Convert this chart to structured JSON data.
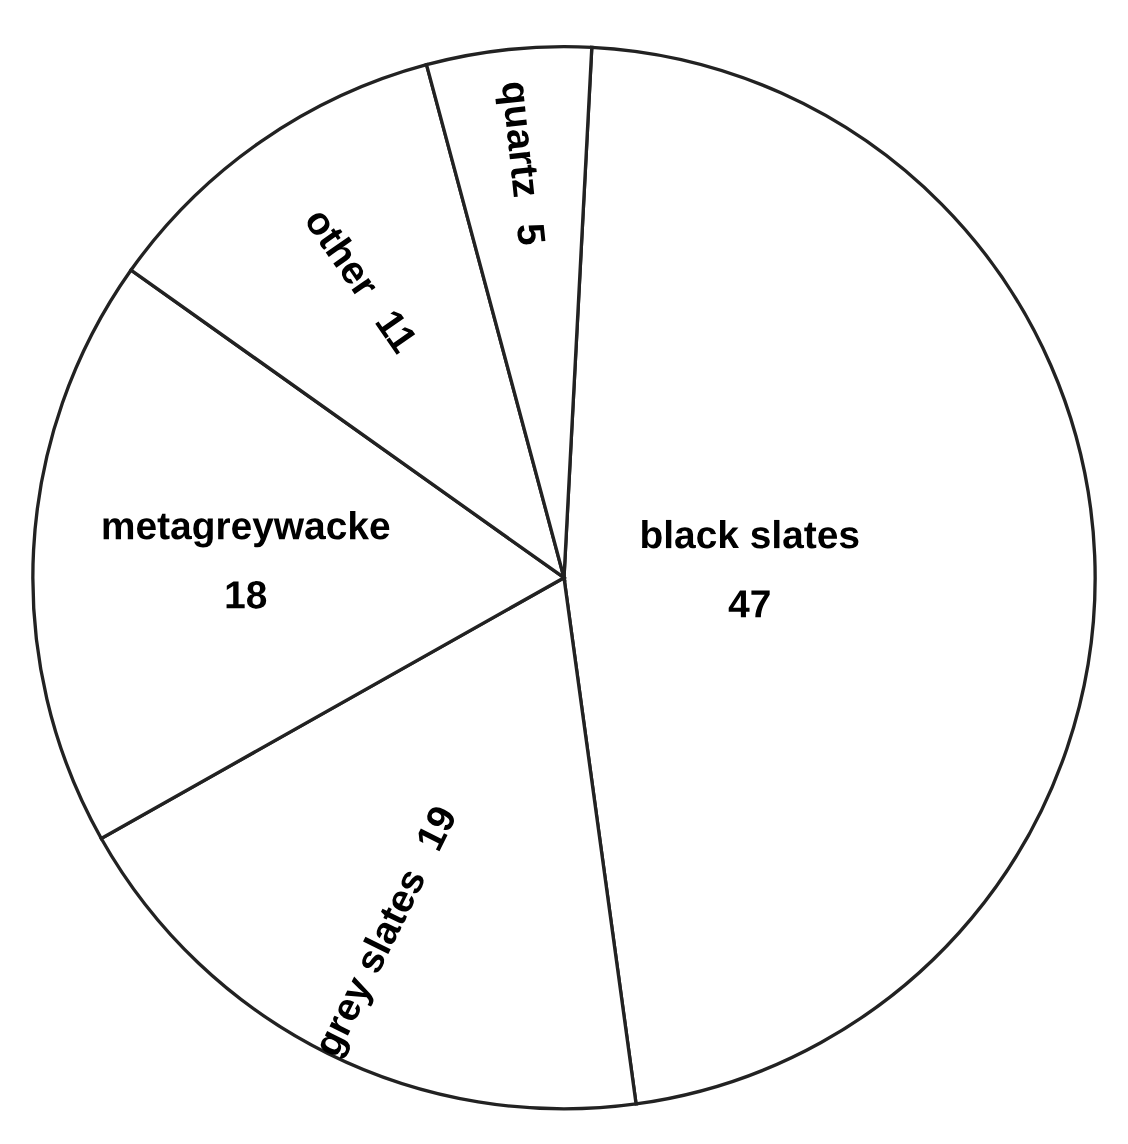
{
  "chart_data": {
    "type": "pie",
    "categories": [
      "black slates",
      "grey slates",
      "metagreywacke",
      "other",
      "quartz"
    ],
    "values": [
      47,
      19,
      18,
      11,
      5
    ],
    "colors": [
      "#ffffff",
      "#ffffff",
      "#ffffff",
      "#ffffff",
      "#ffffff"
    ],
    "data_labels": true
  }
}
